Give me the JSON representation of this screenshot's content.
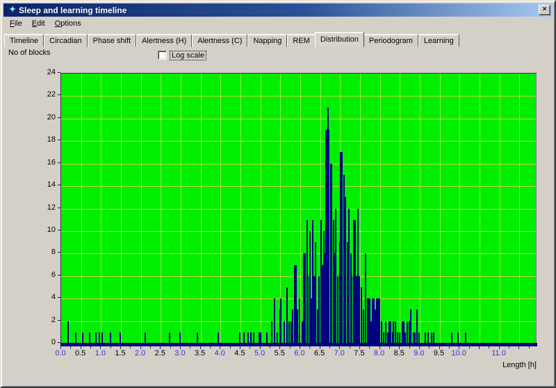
{
  "window": {
    "title": "Sleep and learning timeline",
    "close_label": "×"
  },
  "menu": {
    "items": [
      "File",
      "Edit",
      "Options"
    ],
    "underline_first": true
  },
  "tabs": {
    "items": [
      "Timeline",
      "Circadian",
      "Phase shift",
      "Alertness (H)",
      "Alertness (C)",
      "Napping",
      "REM",
      "Distribution",
      "Periodogram",
      "Learning"
    ],
    "active": "Distribution"
  },
  "controls": {
    "y_axis_label": "No of blocks",
    "log_scale_label": "Log scale",
    "log_scale_checked": false
  },
  "chart_data": {
    "type": "bar",
    "ylabel": "No of blocks",
    "xlabel": "Length [h]",
    "xlim": [
      0,
      11.95
    ],
    "ylim": [
      0,
      24
    ],
    "grid": {
      "x_step": 0.5,
      "y_step": 2,
      "minor_x_tick_step": 0.25
    },
    "legend_position": "none",
    "colors": {
      "plot_bg": "#00ee00",
      "bar": "#000080",
      "axis_line": "#000080",
      "vgrid": "#8ce84a",
      "hgrid": "#c8d848",
      "x_integer_label": "#3333cc",
      "x_half_label": "#000000",
      "titlebar_left": "#0a246a",
      "titlebar_right": "#a6caf0",
      "window_bg": "#d4d0c8"
    },
    "y_ticks": [
      0,
      2,
      4,
      6,
      8,
      10,
      12,
      14,
      16,
      18,
      20,
      22,
      24
    ],
    "x_ticks_labeled": [
      {
        "v": 0.0,
        "label": "0.0",
        "blue": true
      },
      {
        "v": 0.5,
        "label": "0.5",
        "blue": false
      },
      {
        "v": 1.0,
        "label": "1.0",
        "blue": true
      },
      {
        "v": 1.5,
        "label": "1.5",
        "blue": false
      },
      {
        "v": 2.0,
        "label": "2.0",
        "blue": true
      },
      {
        "v": 2.5,
        "label": "2.5",
        "blue": false
      },
      {
        "v": 3.0,
        "label": "3.0",
        "blue": true
      },
      {
        "v": 3.5,
        "label": "3.5",
        "blue": false
      },
      {
        "v": 4.0,
        "label": "4.0",
        "blue": true
      },
      {
        "v": 4.5,
        "label": "4.5",
        "blue": false
      },
      {
        "v": 5.0,
        "label": "5.0",
        "blue": true
      },
      {
        "v": 5.5,
        "label": "5.5",
        "blue": false
      },
      {
        "v": 6.0,
        "label": "6.0",
        "blue": true
      },
      {
        "v": 6.5,
        "label": "6.5",
        "blue": false
      },
      {
        "v": 7.0,
        "label": "7.0",
        "blue": true
      },
      {
        "v": 7.5,
        "label": "7.5",
        "blue": false
      },
      {
        "v": 8.0,
        "label": "8.0",
        "blue": true
      },
      {
        "v": 8.5,
        "label": "8.5",
        "blue": false
      },
      {
        "v": 9.0,
        "label": "9.0",
        "blue": true
      },
      {
        "v": 9.5,
        "label": "9.5",
        "blue": false
      },
      {
        "v": 10.0,
        "label": "10.0",
        "blue": true
      },
      {
        "v": 11.0,
        "label": "11.0",
        "blue": true
      }
    ],
    "bars": [
      [
        0.15,
        2
      ],
      [
        0.35,
        1
      ],
      [
        0.52,
        1
      ],
      [
        0.7,
        1
      ],
      [
        0.85,
        1
      ],
      [
        0.95,
        1
      ],
      [
        1.02,
        1
      ],
      [
        1.22,
        1
      ],
      [
        1.47,
        1
      ],
      [
        2.1,
        1
      ],
      [
        2.7,
        1
      ],
      [
        2.97,
        1
      ],
      [
        3.4,
        1
      ],
      [
        3.92,
        1
      ],
      [
        4.47,
        1
      ],
      [
        4.57,
        1
      ],
      [
        4.67,
        1
      ],
      [
        4.75,
        1
      ],
      [
        4.82,
        1
      ],
      [
        4.95,
        1,
        0.08
      ],
      [
        5.15,
        1
      ],
      [
        5.27,
        2
      ],
      [
        5.33,
        4
      ],
      [
        5.4,
        1
      ],
      [
        5.47,
        3
      ],
      [
        5.5,
        4
      ],
      [
        5.58,
        2
      ],
      [
        5.65,
        5
      ],
      [
        5.7,
        2
      ],
      [
        5.75,
        2
      ],
      [
        5.8,
        3
      ],
      [
        5.85,
        7,
        0.07
      ],
      [
        5.92,
        3
      ],
      [
        5.97,
        4
      ],
      [
        6.03,
        2
      ],
      [
        6.07,
        8,
        0.07
      ],
      [
        6.15,
        11
      ],
      [
        6.18,
        6
      ],
      [
        6.22,
        10
      ],
      [
        6.27,
        4
      ],
      [
        6.3,
        11
      ],
      [
        6.33,
        6
      ],
      [
        6.37,
        9
      ],
      [
        6.42,
        3
      ],
      [
        6.45,
        6
      ],
      [
        6.5,
        11
      ],
      [
        6.55,
        7
      ],
      [
        6.58,
        10
      ],
      [
        6.62,
        8
      ],
      [
        6.63,
        19,
        0.1
      ],
      [
        6.68,
        21
      ],
      [
        6.75,
        16,
        0.06
      ],
      [
        6.82,
        11
      ],
      [
        6.85,
        8
      ],
      [
        6.88,
        12
      ],
      [
        6.93,
        6
      ],
      [
        6.97,
        9
      ],
      [
        7.0,
        17,
        0.07
      ],
      [
        7.08,
        15
      ],
      [
        7.12,
        13
      ],
      [
        7.17,
        9
      ],
      [
        7.2,
        12
      ],
      [
        7.25,
        8
      ],
      [
        7.28,
        6
      ],
      [
        7.32,
        11,
        0.08
      ],
      [
        7.4,
        6
      ],
      [
        7.44,
        12
      ],
      [
        7.47,
        6
      ],
      [
        7.52,
        5
      ],
      [
        7.57,
        3
      ],
      [
        7.62,
        8
      ],
      [
        7.67,
        4
      ],
      [
        7.7,
        4,
        0.06
      ],
      [
        7.77,
        2
      ],
      [
        7.8,
        4,
        0.06
      ],
      [
        7.87,
        3
      ],
      [
        7.9,
        4,
        0.07
      ],
      [
        7.98,
        4
      ],
      [
        8.03,
        2
      ],
      [
        8.08,
        1
      ],
      [
        8.13,
        2
      ],
      [
        8.18,
        1
      ],
      [
        8.22,
        2,
        0.06
      ],
      [
        8.3,
        1
      ],
      [
        8.33,
        2
      ],
      [
        8.38,
        2
      ],
      [
        8.43,
        1
      ],
      [
        8.48,
        1
      ],
      [
        8.55,
        2,
        0.06
      ],
      [
        8.62,
        1
      ],
      [
        8.67,
        2
      ],
      [
        8.72,
        2
      ],
      [
        8.76,
        3
      ],
      [
        8.82,
        1
      ],
      [
        8.87,
        1
      ],
      [
        8.92,
        3
      ],
      [
        8.97,
        1
      ],
      [
        9.13,
        1
      ],
      [
        9.2,
        1
      ],
      [
        9.28,
        1
      ],
      [
        9.33,
        1
      ],
      [
        9.78,
        1
      ],
      [
        9.95,
        1
      ],
      [
        10.13,
        1
      ]
    ]
  }
}
